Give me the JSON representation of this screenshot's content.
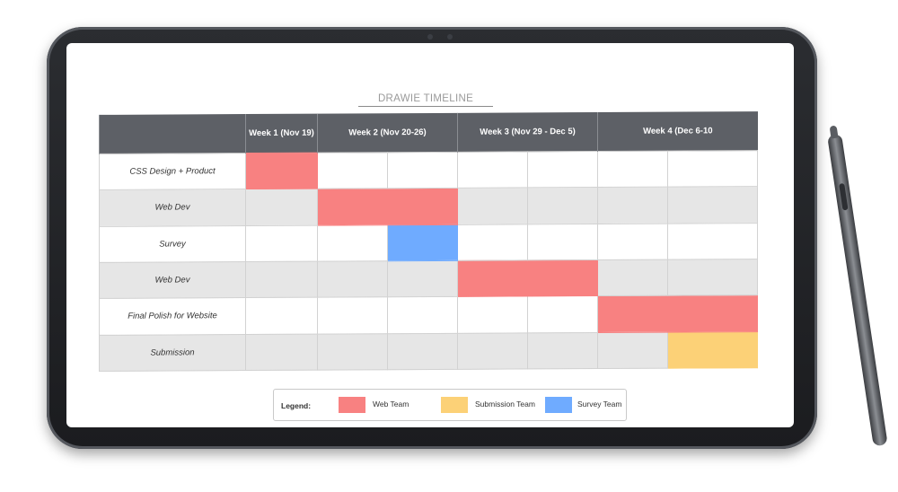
{
  "timeline": {
    "title": "DRAWIE TIMELINE",
    "header": [
      "",
      "Week 1 (Nov 19)",
      "Week 2 (Nov 20-26)",
      "Week 3 (Nov 29 - Dec 5)",
      "Week 4 (Dec 6-10"
    ],
    "tasks": [
      {
        "label": "CSS Design + Product"
      },
      {
        "label": "Web Dev"
      },
      {
        "label": "Survey"
      },
      {
        "label": "Web Dev"
      },
      {
        "label": "Final Polish for Website"
      },
      {
        "label": "Submission"
      }
    ]
  },
  "legend": {
    "label": "Legend:",
    "items": [
      {
        "name": "Web Team",
        "color": "#f88181"
      },
      {
        "name": "Submission Team",
        "color": "#fcd177"
      },
      {
        "name": "Survey Team",
        "color": "#6fabff"
      }
    ]
  }
}
